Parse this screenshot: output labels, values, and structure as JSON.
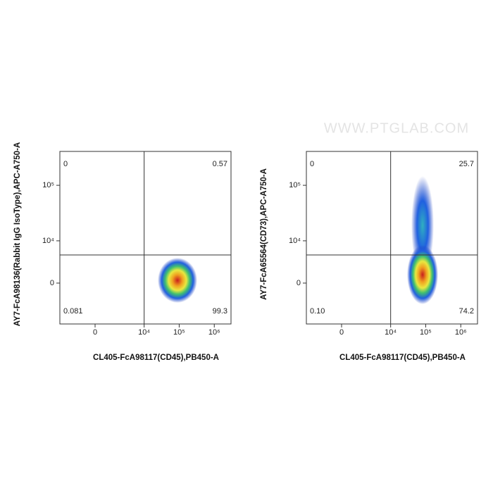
{
  "watermark": "WWW.PTGLAB.COM",
  "chart_data": [
    {
      "type": "density",
      "x_label": "CL405-FcA98117(CD45),PB450-A",
      "y_label": "AY7-FcA98136(Rabbit IgG IsoType),APC-A750-A",
      "xscale": "biexponential",
      "yscale": "biexponential",
      "xlim": [
        -4000,
        3000000
      ],
      "ylim": [
        -9400,
        400000
      ],
      "xticks": [
        0,
        {
          "value": 10000,
          "label": "10⁴"
        },
        {
          "value": 100000,
          "label": "10⁵"
        },
        {
          "value": 1000000,
          "label": "10⁶"
        }
      ],
      "yticks": [
        0,
        {
          "value": 10000,
          "label": "10⁴"
        },
        {
          "value": 100000,
          "label": "10⁵"
        }
      ],
      "gate": {
        "x": 10000,
        "y": 5200
      },
      "values": [
        0,
        0.57,
        0.081,
        99.3
      ]
    },
    {
      "type": "density",
      "x_label": "CL405-FcA98117(CD45),PB450-A",
      "y_label": "AY7-FcA65564(CD73),APC-A750-A",
      "xscale": "biexponential",
      "yscale": "biexponential",
      "xlim": [
        -4000,
        3000000
      ],
      "ylim": [
        -9400,
        400000
      ],
      "xticks": [
        0,
        {
          "value": 10000,
          "label": "10⁴"
        },
        {
          "value": 100000,
          "label": "10⁵"
        },
        {
          "value": 1000000,
          "label": "10⁶"
        }
      ],
      "yticks": [
        0,
        {
          "value": 10000,
          "label": "10⁴"
        },
        {
          "value": 100000,
          "label": "10⁵"
        }
      ],
      "gate": {
        "x": 10000,
        "y": 5200
      },
      "values": [
        0,
        25.7,
        0.1,
        74.2
      ],
      "value_labels": [
        "0",
        "25.7",
        "0.10",
        "74.2"
      ]
    }
  ]
}
